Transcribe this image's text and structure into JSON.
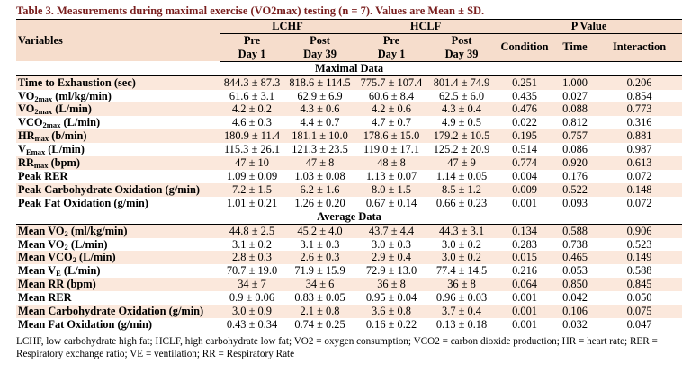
{
  "caption": "Table 3. Measurements during maximal exercise (VO2max) testing (n = 7). Values are Mean ± SD.",
  "header": {
    "variables": "Variables",
    "groups": {
      "lchf": "LCHF",
      "hclf": "HCLF",
      "pvalue": "P Value"
    },
    "pre": "Pre",
    "post": "Post",
    "day1": "Day 1",
    "day39": "Day 39",
    "condition": "Condition",
    "time": "Time",
    "interaction": "Interaction"
  },
  "sections": [
    {
      "title": "Maximal Data",
      "rows": [
        {
          "v": [
            "Time to Exhaustion (sec)",
            "",
            ""
          ],
          "cells": [
            "844.3 ± 87.3",
            "818.6 ± 114.5",
            "775.7 ± 107.4",
            "801.4 ± 74.9",
            "0.251",
            "1.000",
            "0.206"
          ]
        },
        {
          "v": [
            "VO",
            "2max",
            " (ml/kg/min)"
          ],
          "cells": [
            "61.6 ± 3.1",
            "62.9 ± 6.9",
            "60.6 ± 8.4",
            "62.5 ± 6.0",
            "0.435",
            "0.027",
            "0.854"
          ]
        },
        {
          "v": [
            "VO",
            "2max",
            " (L/min)"
          ],
          "cells": [
            "4.2 ± 0.2",
            "4.3 ± 0.6",
            "4.2 ± 0.6",
            "4.3 ± 0.4",
            "0.476",
            "0.088",
            "0.773"
          ]
        },
        {
          "v": [
            "VCO",
            "2max",
            " (L/min)"
          ],
          "cells": [
            "4.6 ± 0.3",
            "4.4 ± 0.7",
            "4.7 ± 0.7",
            "4.9 ± 0.5",
            "0.022",
            "0.812",
            "0.316"
          ]
        },
        {
          "v": [
            "HR",
            "max",
            " (b/min)"
          ],
          "cells": [
            "180.9 ± 11.4",
            "181.1 ± 10.0",
            "178.6 ± 15.0",
            "179.2 ± 10.5",
            "0.195",
            "0.757",
            "0.881"
          ]
        },
        {
          "v": [
            "V",
            "Emax",
            " (L/min)"
          ],
          "cells": [
            "115.3 ± 26.1",
            "121.3 ± 23.5",
            "119.0 ± 17.1",
            "125.2 ± 20.9",
            "0.514",
            "0.086",
            "0.987"
          ]
        },
        {
          "v": [
            "RR",
            "max",
            " (bpm)"
          ],
          "cells": [
            "47 ± 10",
            "47 ± 8",
            "48 ± 8",
            "47 ± 9",
            "0.774",
            "0.920",
            "0.613"
          ]
        },
        {
          "v": [
            "Peak RER",
            "",
            ""
          ],
          "cells": [
            "1.09 ± 0.09",
            "1.03 ± 0.08",
            "1.13 ± 0.07",
            "1.14 ± 0.05",
            "0.004",
            "0.176",
            "0.072"
          ]
        },
        {
          "v": [
            "Peak Carbohydrate Oxidation (g/min)",
            "",
            ""
          ],
          "cells": [
            "7.2 ± 1.5",
            "6.2 ± 1.6",
            "8.0 ± 1.5",
            "8.5 ± 1.2",
            "0.009",
            "0.522",
            "0.148"
          ]
        },
        {
          "v": [
            "Peak Fat Oxidation (g/min)",
            "",
            ""
          ],
          "cells": [
            "1.01 ± 0.21",
            "1.26 ± 0.20",
            "0.67 ± 0.14",
            "0.66 ± 0.23",
            "0.001",
            "0.093",
            "0.072"
          ]
        }
      ]
    },
    {
      "title": "Average Data",
      "rows": [
        {
          "v": [
            "Mean VO",
            "2",
            " (ml/kg/min)"
          ],
          "cells": [
            "44.8 ± 2.5",
            "45.2 ± 4.0",
            "43.7 ± 4.4",
            "44.3 ± 3.1",
            "0.134",
            "0.588",
            "0.906"
          ]
        },
        {
          "v": [
            "Mean VO",
            "2",
            " (L/min)"
          ],
          "cells": [
            "3.1 ± 0.2",
            "3.1 ± 0.3",
            "3.0 ± 0.3",
            "3.0 ± 0.2",
            "0.283",
            "0.738",
            "0.523"
          ]
        },
        {
          "v": [
            "Mean VCO",
            "2",
            " (L/min)"
          ],
          "cells": [
            "2.8 ± 0.3",
            "2.6 ± 0.3",
            "2.9 ± 0.4",
            "3.0 ± 0.2",
            "0.015",
            "0.465",
            "0.149"
          ]
        },
        {
          "v": [
            "Mean V",
            "E",
            " (L/min)"
          ],
          "cells": [
            "70.7 ± 19.0",
            "71.9 ± 15.9",
            "72.9 ± 13.0",
            "77.4 ± 14.5",
            "0.216",
            "0.053",
            "0.588"
          ]
        },
        {
          "v": [
            "Mean RR (bpm)",
            "",
            ""
          ],
          "cells": [
            "34 ± 7",
            "34 ± 6",
            "36 ± 8",
            "36 ± 8",
            "0.064",
            "0.850",
            "0.845"
          ]
        },
        {
          "v": [
            "Mean RER",
            "",
            ""
          ],
          "cells": [
            "0.9 ± 0.06",
            "0.83 ± 0.05",
            "0.95 ± 0.04",
            "0.96 ± 0.03",
            "0.001",
            "0.042",
            "0.050"
          ]
        },
        {
          "v": [
            "Mean Carbohydrate Oxidation (g/min)",
            "",
            ""
          ],
          "cells": [
            "3.0 ± 0.9",
            "2.1 ± 0.8",
            "3.6 ± 0.8",
            "3.7 ± 0.4",
            "0.001",
            "0.106",
            "0.075"
          ]
        },
        {
          "v": [
            "Mean Fat Oxidation (g/min)",
            "",
            ""
          ],
          "cells": [
            "0.43 ± 0.34",
            "0.74 ± 0.25",
            "0.16 ± 0.22",
            "0.13 ± 0.18",
            "0.001",
            "0.032",
            "0.047"
          ]
        }
      ]
    }
  ],
  "footnote": "LCHF, low carbohydrate high fat; HCLF, high carbohydrate low fat; VO2 = oxygen consumption; VCO2 = carbon dioxide production; HR = heart rate; RER = Respiratory exchange ratio; VE = ventilation; RR = Respiratory Rate"
}
